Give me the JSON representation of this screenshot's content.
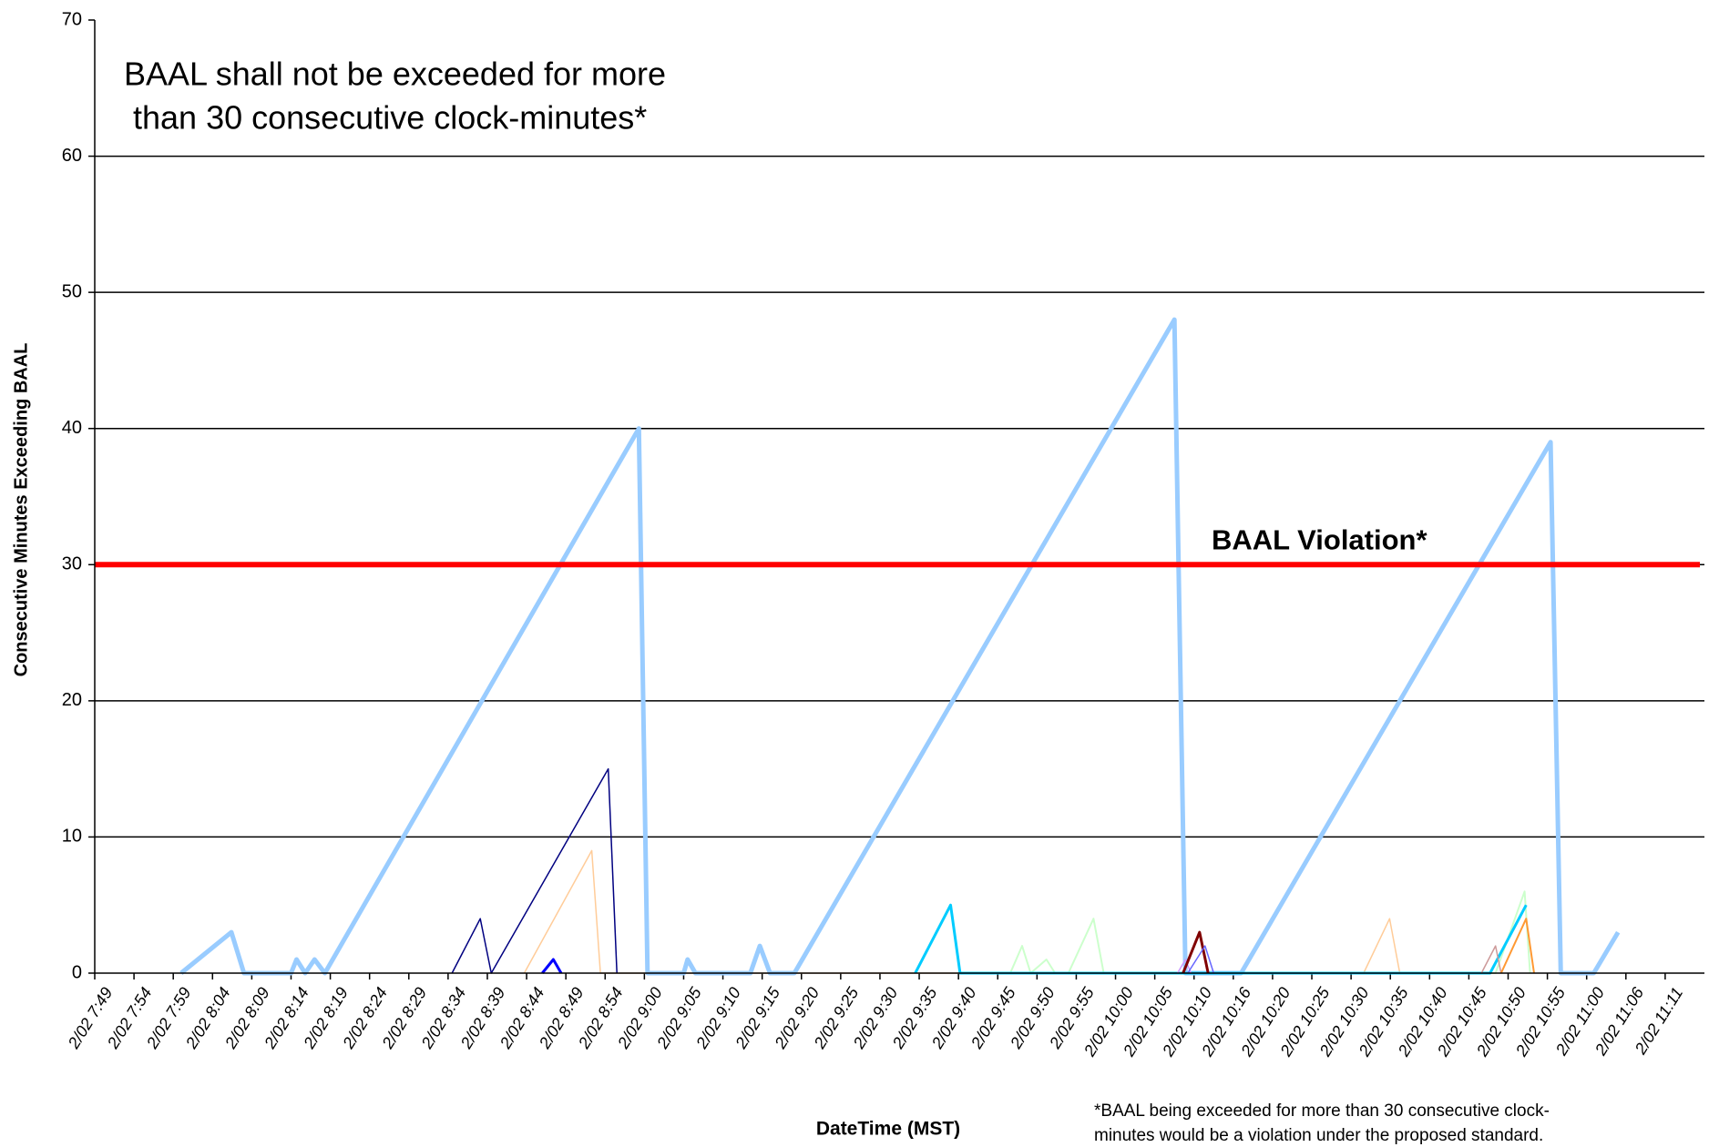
{
  "chart_data": {
    "type": "line",
    "annotation": [
      "BAAL shall not be exceeded for more",
      " than 30 consecutive clock-minutes*"
    ],
    "ylabel": "Consecutive Minutes Exceeding BAAL",
    "xlabel": "DateTime (MST)",
    "footnote": [
      "*BAAL being exceeded for more than 30 consecutive clock-",
      "minutes would be a violation under the proposed standard."
    ],
    "ylim": [
      0,
      70
    ],
    "yticks": [
      0,
      10,
      20,
      30,
      40,
      50,
      60,
      70
    ],
    "xlim": [
      0,
      205
    ],
    "xticks": [
      {
        "value": 0,
        "label": "2/02 7:49"
      },
      {
        "value": 5,
        "label": "2/02 7:54"
      },
      {
        "value": 10,
        "label": "2/02 7:59"
      },
      {
        "value": 15,
        "label": "2/02 8:04"
      },
      {
        "value": 20,
        "label": "2/02 8:09"
      },
      {
        "value": 25,
        "label": "2/02 8:14"
      },
      {
        "value": 30,
        "label": "2/02 8:19"
      },
      {
        "value": 35,
        "label": "2/02 8:24"
      },
      {
        "value": 40,
        "label": "2/02 8:29"
      },
      {
        "value": 45,
        "label": "2/02 8:34"
      },
      {
        "value": 50,
        "label": "2/02 8:39"
      },
      {
        "value": 55,
        "label": "2/02 8:44"
      },
      {
        "value": 60,
        "label": "2/02 8:49"
      },
      {
        "value": 65,
        "label": "2/02 8:54"
      },
      {
        "value": 70,
        "label": "2/02 9:00"
      },
      {
        "value": 75,
        "label": "2/02 9:05"
      },
      {
        "value": 80,
        "label": "2/02 9:10"
      },
      {
        "value": 85,
        "label": "2/02 9:15"
      },
      {
        "value": 90,
        "label": "2/02 9:20"
      },
      {
        "value": 95,
        "label": "2/02 9:25"
      },
      {
        "value": 100,
        "label": "2/02 9:30"
      },
      {
        "value": 105,
        "label": "2/02 9:35"
      },
      {
        "value": 110,
        "label": "2/02 9:40"
      },
      {
        "value": 115,
        "label": "2/02 9:45"
      },
      {
        "value": 120,
        "label": "2/02 9:50"
      },
      {
        "value": 125,
        "label": "2/02 9:55"
      },
      {
        "value": 130,
        "label": "2/02 10:00"
      },
      {
        "value": 135,
        "label": "2/02 10:05"
      },
      {
        "value": 140,
        "label": "2/02 10:10"
      },
      {
        "value": 145,
        "label": "2/02 10:16"
      },
      {
        "value": 150,
        "label": "2/02 10:20"
      },
      {
        "value": 155,
        "label": "2/02 10:25"
      },
      {
        "value": 160,
        "label": "2/02 10:30"
      },
      {
        "value": 165,
        "label": "2/02 10:35"
      },
      {
        "value": 170,
        "label": "2/02 10:40"
      },
      {
        "value": 175,
        "label": "2/02 10:45"
      },
      {
        "value": 180,
        "label": "2/02 10:50"
      },
      {
        "value": 185,
        "label": "2/02 10:55"
      },
      {
        "value": 190,
        "label": "2/02 11:00"
      },
      {
        "value": 195,
        "label": "2/02 11:06"
      },
      {
        "value": 200,
        "label": "2/02 11:11"
      }
    ],
    "grid": true,
    "threshold": {
      "value": 30,
      "label": "BAAL Violation*",
      "color": "#ff0000"
    },
    "series": [
      {
        "color": "#ffcc99",
        "width": 1.5,
        "x": [
          54.7,
          63.3,
          64.4,
          161.6,
          164.9,
          166.2
        ],
        "values": [
          0,
          9,
          0,
          0,
          4,
          0
        ]
      },
      {
        "color": "#ccffcc",
        "width": 2,
        "x": [
          116.6,
          118.1,
          119.2,
          121.2,
          122.3,
          124,
          127.2,
          128.5,
          178.4,
          182.1,
          182.8
        ],
        "values": [
          0,
          2,
          0,
          1,
          0,
          0,
          4,
          0,
          0,
          6,
          0
        ]
      },
      {
        "color": "#99ccff",
        "width": 5,
        "x": [
          11,
          17.4,
          19,
          25,
          25.7,
          26.8,
          28,
          29.3,
          69.3,
          70.4,
          75,
          75.5,
          76.5,
          83.5,
          84.7,
          86,
          89.1,
          137.5,
          138.9,
          146,
          185.4,
          186.7,
          190.9,
          194
        ],
        "values": [
          0,
          3,
          0,
          0,
          1,
          0,
          1,
          0,
          40,
          0,
          0,
          1,
          0,
          0,
          2,
          0,
          0,
          48,
          0,
          0,
          39,
          0,
          0,
          3
        ]
      },
      {
        "color": "#000080",
        "width": 1.5,
        "x": [
          45.5,
          49.1,
          50.5,
          65.4,
          66.5
        ],
        "values": [
          0,
          4,
          0,
          15,
          0
        ]
      },
      {
        "color": "#0000ff",
        "width": 3,
        "x": [
          57,
          58.4,
          59.4
        ],
        "values": [
          0,
          1,
          0
        ]
      },
      {
        "color": "#00ccff",
        "width": 3,
        "x": [
          104.5,
          109,
          110.2,
          177.7,
          182.3
        ],
        "values": [
          0,
          5,
          0,
          0,
          5
        ]
      },
      {
        "color": "#cc99ff",
        "width": 1.5,
        "x": [
          137.9,
          138.9,
          139.6
        ],
        "values": [
          0,
          1,
          0
        ]
      },
      {
        "color": "#800000",
        "width": 3,
        "x": [
          138.6,
          140.7,
          141.8
        ],
        "values": [
          0,
          3,
          0
        ]
      },
      {
        "color": "#6666ff",
        "width": 1.5,
        "x": [
          139.2,
          141.4,
          142.5
        ],
        "values": [
          0,
          2,
          0
        ]
      },
      {
        "color": "#cc9999",
        "width": 1.5,
        "x": [
          176.6,
          178.4,
          179.1
        ],
        "values": [
          0,
          2,
          0
        ]
      },
      {
        "color": "#ff9933",
        "width": 2,
        "x": [
          179.1,
          182.3,
          183.3
        ],
        "values": [
          0,
          4,
          0
        ]
      }
    ]
  }
}
